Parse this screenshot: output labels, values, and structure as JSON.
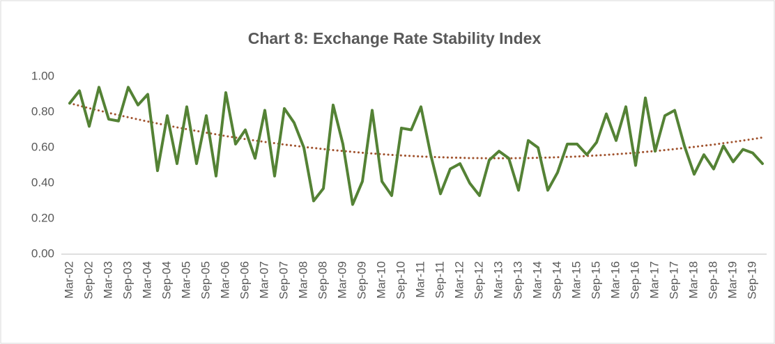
{
  "chart_data": {
    "type": "line",
    "title": "Chart 8: Exchange Rate Stability Index",
    "categories": [
      "Mar-02",
      null,
      "Sep-02",
      null,
      "Mar-03",
      null,
      "Sep-03",
      null,
      "Mar-04",
      null,
      "Sep-04",
      null,
      "Mar-05",
      null,
      "Sep-05",
      null,
      "Mar-06",
      null,
      "Sep-06",
      null,
      "Mar-07",
      null,
      "Sep-07",
      null,
      "Mar-08",
      null,
      "Sep-08",
      null,
      "Mar-09",
      null,
      "Sep-09",
      null,
      "Mar-10",
      null,
      "Sep-10",
      null,
      "Mar-11",
      null,
      "Sep-11",
      null,
      "Mar-12",
      null,
      "Sep-12",
      null,
      "Mar-13",
      null,
      "Sep-13",
      null,
      "Mar-14",
      null,
      "Sep-14",
      null,
      "Mar-15",
      null,
      "Sep-15",
      null,
      "Mar-16",
      null,
      "Sep-16",
      null,
      "Mar-17",
      null,
      "Sep-17",
      null,
      "Mar-18",
      null,
      "Sep-18",
      null,
      "Mar-19",
      null,
      "Sep-19",
      null
    ],
    "series": [
      {
        "color": "#548235",
        "style": "solid",
        "values": [
          0.85,
          0.92,
          0.72,
          0.94,
          0.76,
          0.75,
          0.94,
          0.84,
          0.9,
          0.47,
          0.78,
          0.51,
          0.83,
          0.51,
          0.78,
          0.44,
          0.91,
          0.62,
          0.7,
          0.54,
          0.81,
          0.44,
          0.82,
          0.74,
          0.6,
          0.3,
          0.37,
          0.84,
          0.62,
          0.28,
          0.41,
          0.81,
          0.41,
          0.33,
          0.71,
          0.7,
          0.83,
          0.56,
          0.34,
          0.48,
          0.51,
          0.4,
          0.33,
          0.53,
          0.58,
          0.54,
          0.36,
          0.64,
          0.6,
          0.36,
          0.46,
          0.62,
          0.62,
          0.56,
          0.63,
          0.79,
          0.64,
          0.83,
          0.5,
          0.88,
          0.58,
          0.78,
          0.81,
          0.61,
          0.45,
          0.56,
          0.48,
          0.61,
          0.52,
          0.59,
          0.57,
          0.51
        ]
      },
      {
        "color": "#a0522d",
        "style": "dotted",
        "values": [
          0.85,
          0.836,
          0.822,
          0.809,
          0.796,
          0.783,
          0.771,
          0.759,
          0.747,
          0.736,
          0.725,
          0.714,
          0.704,
          0.694,
          0.684,
          0.675,
          0.665,
          0.657,
          0.648,
          0.64,
          0.632,
          0.625,
          0.617,
          0.611,
          0.604,
          0.598,
          0.592,
          0.586,
          0.581,
          0.576,
          0.571,
          0.567,
          0.563,
          0.559,
          0.556,
          0.553,
          0.55,
          0.548,
          0.546,
          0.544,
          0.543,
          0.541,
          0.541,
          0.54,
          0.54,
          0.54,
          0.541,
          0.541,
          0.543,
          0.544,
          0.546,
          0.548,
          0.55,
          0.553,
          0.556,
          0.559,
          0.563,
          0.567,
          0.571,
          0.576,
          0.581,
          0.586,
          0.592,
          0.598,
          0.604,
          0.611,
          0.617,
          0.625,
          0.632,
          0.64,
          0.648,
          0.657
        ]
      }
    ],
    "ylim": [
      0,
      1
    ],
    "yticks": [
      {
        "value": 0,
        "label": "0.00"
      },
      {
        "value": 0.2,
        "label": "0.20"
      },
      {
        "value": 0.4,
        "label": "0.40"
      },
      {
        "value": 0.6,
        "label": "0.60"
      },
      {
        "value": 0.8,
        "label": "0.80"
      },
      {
        "value": 1,
        "label": "1.00"
      }
    ],
    "grid": false
  }
}
